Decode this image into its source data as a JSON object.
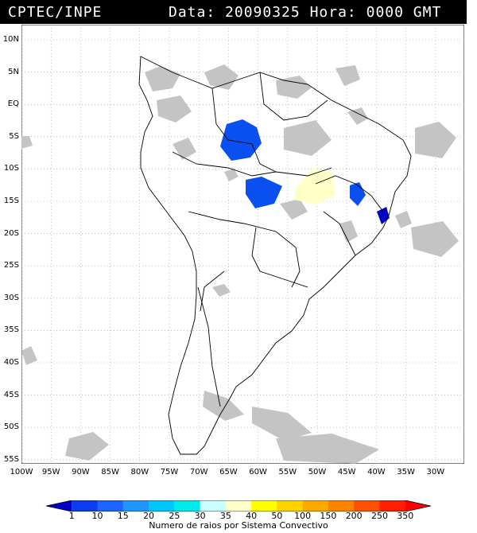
{
  "header": {
    "source": "CPTEC/INPE",
    "date_label": "Data:",
    "date_value": "20090325",
    "time_label": "Hora:",
    "time_value": "0000 GMT"
  },
  "latitude_labels": [
    "10N",
    "5N",
    "EQ",
    "5S",
    "10S",
    "15S",
    "20S",
    "25S",
    "30S",
    "35S",
    "40S",
    "45S",
    "50S",
    "55S"
  ],
  "longitude_labels": [
    "100W",
    "95W",
    "90W",
    "85W",
    "80W",
    "75W",
    "70W",
    "65W",
    "60W",
    "55W",
    "50W",
    "45W",
    "40W",
    "35W",
    "30W"
  ],
  "legend": {
    "ticks": [
      "1",
      "10",
      "15",
      "20",
      "25",
      "30",
      "35",
      "40",
      "50",
      "100",
      "150",
      "200",
      "250",
      "350"
    ],
    "colors": [
      "#0000c8",
      "#0a3cf0",
      "#1e64ff",
      "#1e96ff",
      "#00c8ff",
      "#00ebeb",
      "#c8ffff",
      "#ffffc8",
      "#ffff00",
      "#ffd200",
      "#ffaa00",
      "#ff8200",
      "#ff5000",
      "#ff1e00",
      "#ff0000"
    ],
    "caption": "Numero de raios por Sistema Convectivo"
  },
  "colors": {
    "cloud_gray": "#bcbcbc",
    "cluster_blue": "#0a50f0",
    "cluster_dark_blue": "#0000c8",
    "cluster_yellow": "#ffffc8"
  }
}
